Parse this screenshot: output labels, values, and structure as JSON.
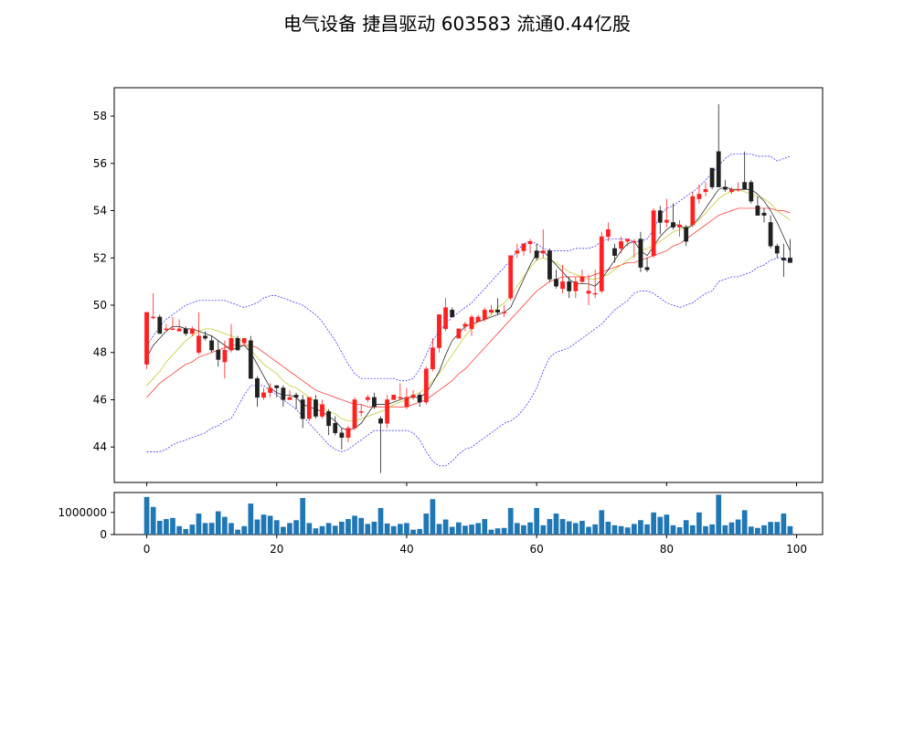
{
  "title": "电气设备 捷昌驱动 603583 流通0.44亿股",
  "colors": {
    "up": "#ff2020",
    "down": "#202020",
    "ma_short": "#111111",
    "ma_mid": "#c8c832",
    "ma_long": "#ff2020",
    "boll": "#2020ff",
    "volume": "#1f77b4"
  },
  "chart_data": [
    {
      "type": "candlestick",
      "title": "",
      "xlim": [
        -5,
        104
      ],
      "ylim": [
        42.5,
        59.2
      ],
      "y_ticks": [
        44,
        46,
        48,
        50,
        52,
        54,
        56,
        58
      ],
      "grid": false,
      "candles": [
        [
          47.5,
          49.7,
          47.3,
          49.7
        ],
        [
          49.5,
          50.5,
          49.4,
          49.5
        ],
        [
          49.5,
          49.6,
          48.8,
          48.8
        ],
        [
          49.0,
          49.2,
          48.9,
          49.0
        ],
        [
          49.0,
          49.5,
          49.0,
          49.0
        ],
        [
          48.9,
          49.4,
          48.9,
          49.0
        ],
        [
          49.0,
          49.1,
          48.7,
          48.8
        ],
        [
          48.8,
          49.1,
          48.7,
          49.0
        ],
        [
          48.0,
          49.7,
          47.9,
          48.7
        ],
        [
          48.7,
          48.9,
          48.5,
          48.6
        ],
        [
          48.5,
          48.7,
          48.0,
          48.1
        ],
        [
          48.1,
          48.5,
          47.4,
          47.7
        ],
        [
          47.6,
          48.5,
          46.9,
          48.1
        ],
        [
          48.1,
          49.2,
          48.0,
          48.6
        ],
        [
          48.6,
          48.7,
          48.1,
          48.1
        ],
        [
          48.4,
          48.6,
          48.3,
          48.6
        ],
        [
          48.5,
          48.7,
          46.9,
          46.9
        ],
        [
          46.9,
          47.0,
          45.7,
          46.1
        ],
        [
          46.1,
          46.5,
          46.0,
          46.3
        ],
        [
          46.3,
          46.7,
          46.1,
          46.5
        ],
        [
          46.6,
          46.6,
          46.1,
          46.5
        ],
        [
          46.5,
          46.6,
          45.7,
          46.0
        ],
        [
          46.0,
          46.4,
          46.0,
          46.1
        ],
        [
          46.2,
          46.3,
          45.6,
          46.1
        ],
        [
          46.0,
          46.2,
          44.8,
          45.2
        ],
        [
          45.2,
          46.1,
          45.1,
          46.1
        ],
        [
          46.0,
          46.2,
          45.2,
          45.3
        ],
        [
          45.3,
          46.0,
          45.2,
          45.8
        ],
        [
          45.5,
          45.6,
          44.5,
          44.9
        ],
        [
          45.0,
          45.3,
          44.5,
          44.6
        ],
        [
          44.6,
          44.8,
          43.9,
          44.4
        ],
        [
          44.4,
          44.9,
          44.2,
          44.8
        ],
        [
          44.8,
          46.1,
          44.7,
          46.0
        ],
        [
          45.5,
          45.8,
          45.3,
          45.5
        ],
        [
          46.0,
          46.2,
          45.9,
          46.1
        ],
        [
          46.1,
          46.3,
          45.6,
          45.7
        ],
        [
          45.2,
          45.3,
          42.9,
          45.0
        ],
        [
          45.0,
          46.2,
          44.8,
          46.0
        ],
        [
          46.0,
          46.2,
          46.0,
          46.2
        ],
        [
          46.1,
          46.7,
          46.0,
          46.1
        ],
        [
          45.7,
          46.5,
          45.6,
          46.1
        ],
        [
          46.1,
          46.4,
          46.0,
          46.2
        ],
        [
          46.2,
          46.3,
          45.7,
          45.9
        ],
        [
          45.9,
          47.4,
          45.8,
          47.3
        ],
        [
          47.3,
          48.6,
          47.2,
          48.2
        ],
        [
          48.2,
          49.5,
          48.0,
          49.6
        ],
        [
          49.0,
          50.3,
          48.9,
          49.9
        ],
        [
          49.8,
          49.9,
          49.5,
          49.5
        ],
        [
          48.6,
          49.0,
          48.6,
          49.0
        ],
        [
          49.1,
          49.3,
          48.9,
          49.2
        ],
        [
          49.0,
          49.6,
          48.7,
          49.5
        ],
        [
          49.3,
          49.6,
          49.3,
          49.5
        ],
        [
          49.4,
          49.9,
          49.3,
          49.8
        ],
        [
          49.7,
          50.0,
          49.6,
          49.8
        ],
        [
          49.8,
          50.3,
          49.6,
          49.7
        ],
        [
          49.7,
          50.0,
          49.5,
          49.7
        ],
        [
          50.3,
          52.1,
          50.2,
          52.1
        ],
        [
          52.2,
          52.6,
          52.0,
          52.3
        ],
        [
          52.3,
          52.6,
          52.1,
          52.6
        ],
        [
          52.6,
          52.8,
          52.2,
          52.7
        ],
        [
          52.3,
          52.6,
          51.9,
          52.0
        ],
        [
          52.2,
          53.2,
          52.0,
          52.3
        ],
        [
          52.3,
          52.4,
          51.0,
          51.1
        ],
        [
          51.1,
          51.5,
          50.7,
          50.8
        ],
        [
          50.7,
          51.7,
          50.5,
          51.0
        ],
        [
          51.0,
          51.2,
          50.3,
          50.6
        ],
        [
          50.6,
          51.2,
          50.3,
          51.0
        ],
        [
          51.0,
          51.5,
          50.9,
          51.2
        ],
        [
          50.5,
          51.3,
          50.0,
          50.6
        ],
        [
          50.5,
          51.5,
          50.3,
          50.5
        ],
        [
          50.6,
          53.1,
          50.5,
          52.9
        ],
        [
          52.9,
          53.5,
          52.7,
          53.2
        ],
        [
          52.4,
          52.6,
          51.8,
          52.1
        ],
        [
          52.4,
          52.9,
          52.2,
          52.7
        ],
        [
          52.7,
          52.8,
          52.5,
          52.8
        ],
        [
          52.7,
          52.8,
          52.0,
          52.7
        ],
        [
          52.8,
          53.1,
          51.4,
          51.6
        ],
        [
          51.6,
          52.0,
          51.4,
          51.5
        ],
        [
          52.1,
          54.1,
          52.0,
          54.0
        ],
        [
          54.0,
          54.2,
          53.0,
          53.5
        ],
        [
          53.5,
          54.5,
          53.3,
          53.6
        ],
        [
          53.5,
          54.3,
          53.2,
          53.3
        ],
        [
          53.3,
          53.6,
          52.9,
          53.4
        ],
        [
          53.3,
          53.4,
          52.5,
          52.7
        ],
        [
          53.4,
          54.8,
          53.3,
          54.6
        ],
        [
          54.5,
          55.1,
          54.3,
          54.7
        ],
        [
          54.8,
          55.2,
          54.6,
          54.9
        ],
        [
          55.8,
          55.8,
          54.9,
          55.0
        ],
        [
          56.5,
          58.5,
          55.0,
          55.0
        ],
        [
          55.0,
          55.3,
          54.8,
          54.9
        ],
        [
          54.8,
          55.0,
          54.7,
          54.9
        ],
        [
          54.9,
          55.2,
          54.8,
          54.9
        ],
        [
          55.2,
          56.5,
          54.9,
          54.9
        ],
        [
          55.2,
          55.3,
          54.3,
          54.4
        ],
        [
          54.2,
          54.6,
          53.8,
          53.8
        ],
        [
          53.9,
          54.1,
          53.5,
          53.8
        ],
        [
          53.5,
          53.8,
          52.4,
          52.5
        ],
        [
          52.5,
          52.6,
          52.0,
          52.2
        ],
        [
          52.0,
          52.6,
          51.2,
          51.9
        ],
        [
          52.0,
          52.8,
          51.8,
          51.8
        ]
      ],
      "ma_short": [
        47.8,
        48.3,
        48.6,
        48.9,
        49.1,
        49.1,
        49.0,
        49.0,
        48.9,
        48.8,
        48.7,
        48.5,
        48.3,
        48.1,
        48.2,
        48.3,
        48.0,
        47.5,
        47.0,
        46.5,
        46.3,
        46.2,
        46.2,
        46.1,
        45.8,
        45.7,
        45.6,
        45.5,
        45.3,
        45.1,
        44.8,
        44.7,
        44.8,
        45.0,
        45.4,
        45.8,
        45.8,
        45.8,
        45.9,
        46.0,
        46.1,
        46.1,
        46.1,
        46.3,
        46.7,
        47.2,
        47.9,
        48.5,
        48.8,
        49.1,
        49.2,
        49.3,
        49.4,
        49.5,
        49.6,
        49.7,
        49.9,
        50.5,
        51.1,
        51.7,
        52.2,
        52.3,
        52.0,
        51.7,
        51.4,
        51.1,
        50.9,
        50.9,
        50.9,
        50.8,
        51.1,
        51.5,
        51.9,
        52.3,
        52.6,
        52.7,
        52.3,
        52.1,
        52.5,
        52.9,
        53.2,
        53.4,
        53.4,
        53.2,
        53.4,
        53.7,
        54.1,
        54.5,
        54.9,
        55.0,
        54.9,
        54.9,
        54.9,
        54.9,
        54.7,
        54.4,
        54.0,
        53.5,
        52.9,
        52.3
      ],
      "ma_mid": [
        46.6,
        46.9,
        47.2,
        47.6,
        47.9,
        48.2,
        48.5,
        48.7,
        48.9,
        49.0,
        49.0,
        48.9,
        48.8,
        48.7,
        48.6,
        48.4,
        48.1,
        47.8,
        47.5,
        47.3,
        47.1,
        46.8,
        46.6,
        46.5,
        46.3,
        46.1,
        45.9,
        45.7,
        45.5,
        45.4,
        45.2,
        45.1,
        45.1,
        45.2,
        45.3,
        45.4,
        45.5,
        45.6,
        45.8,
        45.9,
        46.0,
        46.2,
        46.3,
        46.5,
        46.8,
        47.1,
        47.5,
        47.9,
        48.3,
        48.7,
        49.0,
        49.3,
        49.4,
        49.6,
        49.9,
        50.1,
        50.4,
        50.8,
        51.2,
        51.6,
        51.9,
        52.0,
        51.9,
        51.8,
        51.6,
        51.4,
        51.3,
        51.2,
        51.1,
        51.1,
        51.2,
        51.3,
        51.5,
        51.7,
        51.9,
        52.1,
        52.3,
        52.4,
        52.5,
        52.7,
        52.9,
        53.1,
        53.2,
        53.3,
        53.4,
        53.6,
        53.9,
        54.2,
        54.5,
        54.7,
        54.8,
        54.9,
        54.8,
        54.7,
        54.6,
        54.5,
        54.3,
        54.0,
        53.8,
        53.6
      ],
      "ma_long": [
        46.1,
        46.4,
        46.7,
        46.9,
        47.1,
        47.3,
        47.5,
        47.6,
        47.8,
        47.9,
        48.0,
        48.1,
        48.2,
        48.3,
        48.3,
        48.3,
        48.3,
        48.2,
        48.0,
        47.8,
        47.6,
        47.4,
        47.2,
        47.0,
        46.8,
        46.6,
        46.4,
        46.3,
        46.2,
        46.1,
        46.0,
        45.9,
        45.8,
        45.8,
        45.7,
        45.7,
        45.7,
        45.7,
        45.7,
        45.7,
        45.7,
        45.8,
        45.9,
        46.0,
        46.2,
        46.4,
        46.6,
        46.8,
        47.1,
        47.3,
        47.6,
        47.9,
        48.2,
        48.5,
        48.8,
        49.1,
        49.4,
        49.7,
        50.0,
        50.3,
        50.6,
        50.8,
        51.0,
        51.1,
        51.2,
        51.2,
        51.2,
        51.2,
        51.2,
        51.3,
        51.4,
        51.5,
        51.6,
        51.7,
        51.8,
        51.8,
        51.9,
        52.0,
        52.1,
        52.2,
        52.3,
        52.5,
        52.6,
        52.8,
        53.0,
        53.2,
        53.4,
        53.6,
        53.8,
        53.9,
        54.0,
        54.1,
        54.1,
        54.1,
        54.1,
        54.1,
        54.1,
        54.0,
        54.0,
        53.9
      ],
      "boll_upper": [
        48.3,
        48.7,
        49.1,
        49.4,
        49.6,
        49.8,
        50.0,
        50.1,
        50.2,
        50.2,
        50.2,
        50.2,
        50.2,
        50.1,
        50.0,
        49.9,
        50.0,
        50.1,
        50.3,
        50.4,
        50.4,
        50.3,
        50.2,
        50.1,
        50.0,
        49.8,
        49.6,
        49.3,
        48.9,
        48.5,
        48.0,
        47.5,
        47.1,
        46.9,
        46.9,
        46.9,
        46.9,
        46.9,
        46.9,
        46.8,
        46.8,
        46.9,
        47.3,
        47.9,
        48.5,
        48.9,
        49.2,
        49.5,
        49.7,
        49.9,
        50.1,
        50.4,
        50.7,
        51.0,
        51.3,
        51.6,
        51.9,
        52.3,
        52.6,
        52.7,
        52.6,
        52.4,
        52.3,
        52.3,
        52.3,
        52.3,
        52.4,
        52.4,
        52.4,
        52.5,
        52.7,
        52.8,
        52.8,
        52.8,
        52.8,
        52.7,
        52.7,
        52.8,
        53.2,
        53.8,
        54.1,
        54.2,
        54.4,
        54.6,
        54.8,
        55.0,
        55.3,
        55.6,
        55.9,
        56.2,
        56.4,
        56.4,
        56.4,
        56.4,
        56.3,
        56.3,
        56.3,
        56.1,
        56.2,
        56.3
      ],
      "boll_lower": [
        43.8,
        43.8,
        43.8,
        43.9,
        44.1,
        44.2,
        44.3,
        44.4,
        44.5,
        44.6,
        44.8,
        44.9,
        45.1,
        45.2,
        45.7,
        46.2,
        46.6,
        46.6,
        46.6,
        46.4,
        46.2,
        46.0,
        45.8,
        45.6,
        45.3,
        45.0,
        44.7,
        44.4,
        44.1,
        43.9,
        43.8,
        43.9,
        44.1,
        44.3,
        44.5,
        44.7,
        44.7,
        44.7,
        44.7,
        44.7,
        44.7,
        44.6,
        44.3,
        43.8,
        43.4,
        43.2,
        43.2,
        43.4,
        43.7,
        43.9,
        44.0,
        44.2,
        44.4,
        44.6,
        44.8,
        45.0,
        45.1,
        45.3,
        45.6,
        46.0,
        46.5,
        47.2,
        47.8,
        48.0,
        48.1,
        48.2,
        48.4,
        48.6,
        48.8,
        49.0,
        49.2,
        49.5,
        49.8,
        50.0,
        50.2,
        50.5,
        50.6,
        50.6,
        50.5,
        50.3,
        50.1,
        50.0,
        49.9,
        50.0,
        50.1,
        50.3,
        50.5,
        50.6,
        51.0,
        51.1,
        51.2,
        51.2,
        51.3,
        51.4,
        51.6,
        51.7,
        51.9,
        52.0,
        52.0,
        51.8
      ]
    },
    {
      "type": "bar",
      "title": "",
      "xlim": [
        -5,
        104
      ],
      "ylim": [
        0,
        1900000
      ],
      "y_ticks": [
        0,
        1000000
      ],
      "x_ticks": [
        0,
        20,
        40,
        60,
        80,
        100
      ],
      "values": [
        1700000,
        1250000,
        620000,
        700000,
        750000,
        380000,
        250000,
        450000,
        950000,
        520000,
        530000,
        1050000,
        800000,
        520000,
        220000,
        380000,
        1400000,
        680000,
        900000,
        850000,
        650000,
        350000,
        520000,
        650000,
        1650000,
        520000,
        280000,
        380000,
        520000,
        400000,
        580000,
        700000,
        850000,
        750000,
        480000,
        580000,
        1200000,
        500000,
        380000,
        480000,
        520000,
        220000,
        250000,
        950000,
        1600000,
        480000,
        680000,
        350000,
        550000,
        400000,
        450000,
        520000,
        700000,
        220000,
        280000,
        300000,
        1200000,
        520000,
        420000,
        550000,
        1200000,
        420000,
        700000,
        950000,
        700000,
        600000,
        520000,
        620000,
        350000,
        460000,
        1100000,
        580000,
        420000,
        380000,
        320000,
        480000,
        650000,
        460000,
        1000000,
        800000,
        900000,
        420000,
        330000,
        650000,
        420000,
        1000000,
        380000,
        460000,
        1800000,
        420000,
        550000,
        680000,
        1100000,
        360000,
        300000,
        420000,
        570000,
        570000,
        950000,
        380000
      ]
    }
  ]
}
